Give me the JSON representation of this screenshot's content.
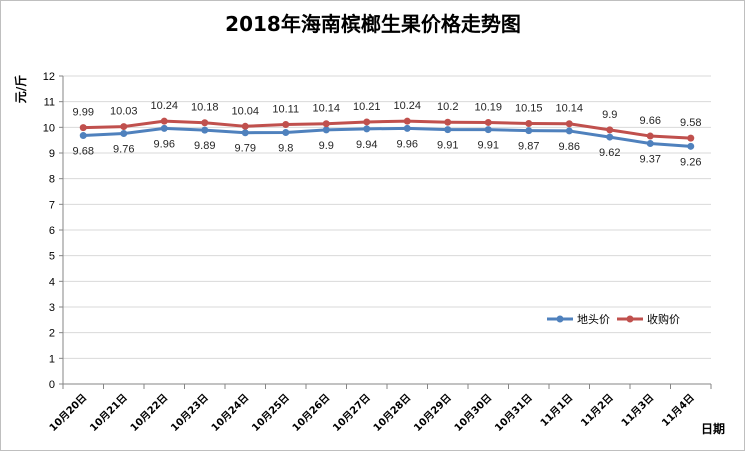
{
  "chart_data": {
    "type": "line",
    "title": "2018年海南槟榔生果价格走势图",
    "ylabel": "元/斤",
    "xlabel": "日期",
    "ylim": [
      0,
      12
    ],
    "yticks": [
      0,
      1,
      2,
      3,
      4,
      5,
      6,
      7,
      8,
      9,
      10,
      11,
      12
    ],
    "grid": true,
    "legend_position": "right",
    "categories": [
      "10月20日",
      "10月21日",
      "10月22日",
      "10月23日",
      "10月24日",
      "10月25日",
      "10月26日",
      "10月27日",
      "10月28日",
      "10月29日",
      "10月30日",
      "10月31日",
      "11月1日",
      "11月2日",
      "11月3日",
      "11月4日"
    ],
    "series": [
      {
        "name": "地头价",
        "color": "#4f81bd",
        "values": [
          9.68,
          9.76,
          9.96,
          9.89,
          9.79,
          9.8,
          9.9,
          9.94,
          9.96,
          9.91,
          9.91,
          9.87,
          9.86,
          9.62,
          9.37,
          9.26
        ],
        "labels": [
          "9.68",
          "9.76",
          "9.96",
          "9.89",
          "9.79",
          "9.8",
          "9.9",
          "9.94",
          "9.96",
          "9.91",
          "9.91",
          "9.87",
          "9.86",
          "9.62",
          "9.37",
          "9.26"
        ]
      },
      {
        "name": "收购价",
        "color": "#c0504d",
        "values": [
          9.99,
          10.03,
          10.24,
          10.18,
          10.04,
          10.11,
          10.14,
          10.21,
          10.24,
          10.2,
          10.19,
          10.15,
          10.14,
          9.9,
          9.66,
          9.58
        ],
        "labels": [
          "9.99",
          "10.03",
          "10.24",
          "10.18",
          "10.04",
          "10.11",
          "10.14",
          "10.21",
          "10.24",
          "10.2",
          "10.19",
          "10.15",
          "10.14",
          "9.9",
          "9.66",
          "9.58"
        ]
      }
    ]
  }
}
